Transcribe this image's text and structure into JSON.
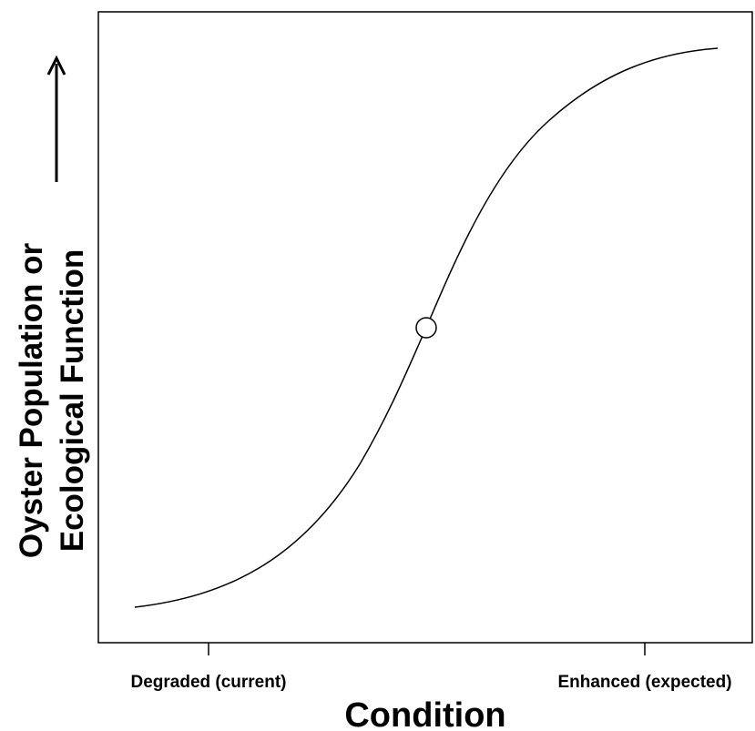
{
  "axis_labels": {
    "x": "Condition",
    "y": [
      "Oyster Population or",
      "Ecological Function"
    ]
  },
  "x_ticks": [
    "Degraded (current)",
    "Enhanced (expected)"
  ]
}
